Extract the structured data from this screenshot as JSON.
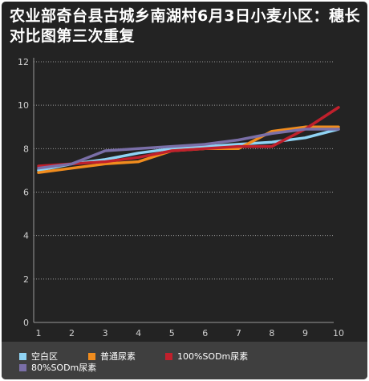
{
  "title": "农业部奇台县古城乡南湖村6月3日小麦小区：穗长对比图第三次重复",
  "chart_data": {
    "type": "line",
    "title": "农业部奇台县古城乡南湖村6月3日小麦小区：穗长对比图第三次重复",
    "xlabel": "",
    "ylabel": "",
    "x": [
      1,
      2,
      3,
      4,
      5,
      6,
      7,
      8,
      9,
      10
    ],
    "ylim": [
      0,
      12
    ],
    "yticks": [
      0,
      2,
      4,
      6,
      8,
      10,
      12
    ],
    "grid": true,
    "legend_position": "bottom",
    "series": [
      {
        "name": "空白区",
        "color": "#8fd3f4",
        "values": [
          7.0,
          7.3,
          7.5,
          7.8,
          8.0,
          8.1,
          8.2,
          8.3,
          8.5,
          8.9
        ]
      },
      {
        "name": "普通尿素",
        "color": "#f08c1e",
        "values": [
          6.9,
          7.1,
          7.3,
          7.4,
          7.9,
          8.0,
          8.0,
          8.8,
          9.0,
          9.0
        ]
      },
      {
        "name": "100%SODm尿素",
        "color": "#c0202c",
        "values": [
          7.2,
          7.3,
          7.4,
          7.6,
          7.9,
          8.0,
          8.1,
          8.1,
          8.9,
          9.9
        ]
      },
      {
        "name": "80%SODm尿素",
        "color": "#7a6fa8",
        "values": [
          7.1,
          7.3,
          7.9,
          8.0,
          8.1,
          8.2,
          8.4,
          8.7,
          8.9,
          8.9
        ]
      }
    ]
  }
}
